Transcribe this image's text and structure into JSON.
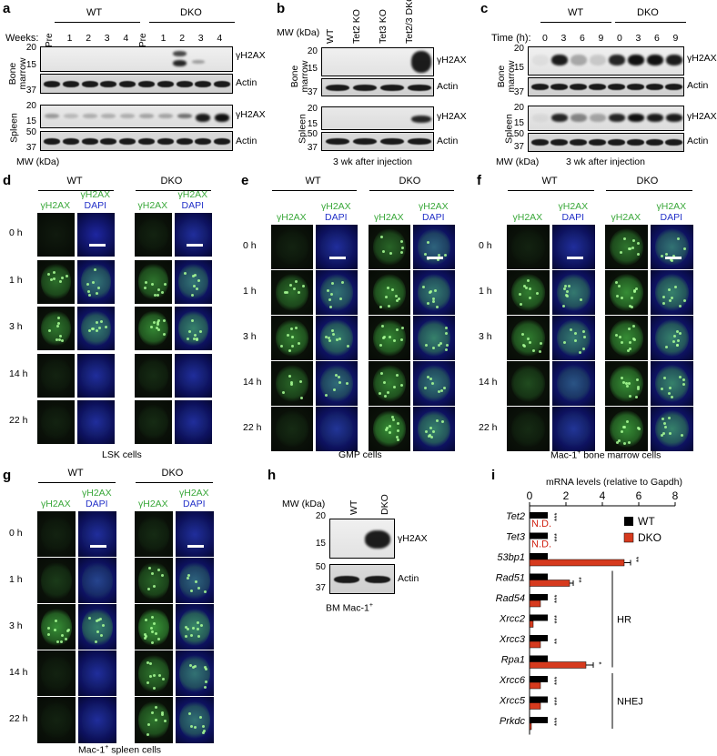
{
  "panel_letters": {
    "a": "a",
    "b": "b",
    "c": "c",
    "d": "d",
    "e": "e",
    "f": "f",
    "g": "g",
    "h": "h",
    "i": "i"
  },
  "common": {
    "wt": "WT",
    "dko": "DKO",
    "gh2ax": "γH2AX",
    "actin": "Actin",
    "dapi": "DAPI",
    "mw": "MW (kDa)",
    "bone_marrow": "Bone marrow",
    "spleen": "Spleen",
    "mw20": "20",
    "mw15": "15",
    "mw37": "37",
    "mw50": "50"
  },
  "panel_a": {
    "weeks_label": "Weeks:",
    "weeks": [
      "Pre",
      "1",
      "2",
      "3",
      "4",
      "Pre",
      "1",
      "2",
      "3",
      "4"
    ]
  },
  "panel_b": {
    "lanes": [
      "WT",
      "Tet2 KO",
      "Tet3 KO",
      "Tet2/3 DKO"
    ],
    "caption": "3 wk after injection"
  },
  "panel_c": {
    "time_label": "Time (h):",
    "times": [
      "0",
      "3",
      "6",
      "9",
      "0",
      "3",
      "6",
      "9"
    ],
    "caption": "3 wk after injection"
  },
  "timepoints": [
    "0 h",
    "1 h",
    "3 h",
    "14 h",
    "22 h"
  ],
  "panel_d": {
    "caption": "LSK cells"
  },
  "panel_e": {
    "caption": "GMP cells"
  },
  "panel_f": {
    "caption_pre": "Mac-1",
    "caption_sup": "+",
    "caption_post": " bone marrow cells"
  },
  "panel_g": {
    "caption_pre": "Mac-1",
    "caption_sup": "+",
    "caption_post": " spleen cells"
  },
  "panel_h": {
    "lanes": [
      "WT",
      "DKO"
    ],
    "caption_pre": "BM Mac-1",
    "caption_sup": "+"
  },
  "chart_data": {
    "type": "bar",
    "orientation": "horizontal",
    "title": "mRNA levels (relative to Gapdh)",
    "xlim": [
      0,
      8
    ],
    "xticks": [
      "0",
      "2",
      "4",
      "6",
      "8"
    ],
    "categories": [
      "Tet2",
      "Tet3",
      "53bp1",
      "Rad51",
      "Rad54",
      "Xrcc2",
      "Xrcc3",
      "Rpa1",
      "Xrcc6",
      "Xrcc5",
      "Prkdc"
    ],
    "series": [
      {
        "name": "WT",
        "color": "#000000",
        "values": [
          1,
          1,
          1,
          1,
          1,
          1,
          1,
          1,
          1,
          1,
          1
        ]
      },
      {
        "name": "DKO",
        "color": "#d63a1e",
        "values": [
          0,
          0,
          5.2,
          2.2,
          0.6,
          0.2,
          0.6,
          3.1,
          0.6,
          0.6,
          0.1
        ],
        "errors": [
          0,
          0,
          0.35,
          0.2,
          0.05,
          0.03,
          0.05,
          0.4,
          0.05,
          0.05,
          0.02
        ]
      }
    ],
    "nd_label": "N.D.",
    "significance": [
      "***",
      "***",
      "**",
      "**",
      "***",
      "***",
      "**",
      "*",
      "***",
      "***",
      "***"
    ],
    "groups": [
      {
        "label": "HR"
      },
      {
        "label": "NHEJ"
      }
    ],
    "legend_position": "right"
  }
}
